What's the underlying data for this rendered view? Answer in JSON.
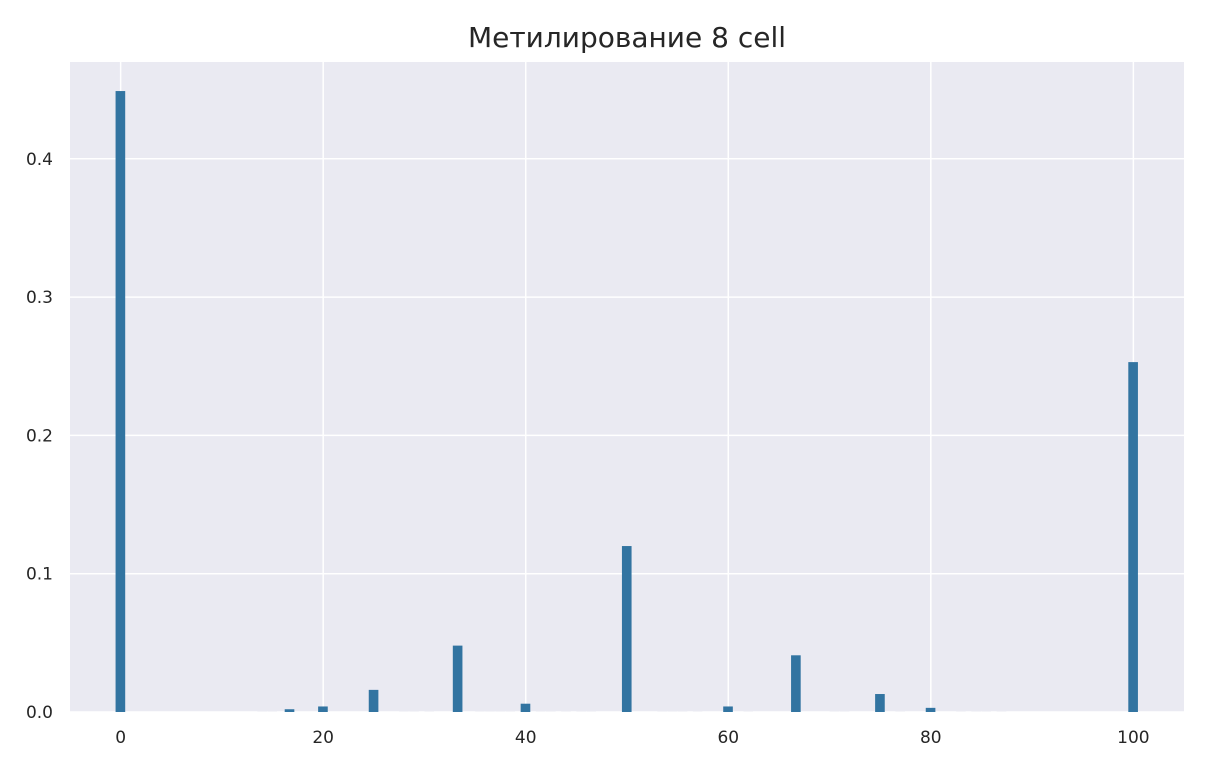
{
  "chart_data": {
    "type": "bar",
    "title": "Метилирование 8 cell",
    "xlabel": "",
    "ylabel": "",
    "xlim": [
      -5,
      105
    ],
    "ylim": [
      0,
      0.47
    ],
    "x_ticks": [
      0,
      20,
      40,
      60,
      80,
      100
    ],
    "y_ticks": [
      0.0,
      0.1,
      0.2,
      0.3,
      0.4
    ],
    "x_tick_labels": [
      "0",
      "20",
      "40",
      "60",
      "80",
      "100"
    ],
    "y_tick_labels": [
      "0.0",
      "0.1",
      "0.2",
      "0.3",
      "0.4"
    ],
    "bar_width": 1.0,
    "grid": true,
    "colors": {
      "background": "#eaeaf2",
      "grid": "#ffffff",
      "bar": "#3274a1",
      "text": "#262626"
    },
    "bars": [
      {
        "x": 0,
        "y": 0.449
      },
      {
        "x": 14,
        "y": 0.0005
      },
      {
        "x": 15,
        "y": 0.0005
      },
      {
        "x": 16.7,
        "y": 0.002
      },
      {
        "x": 20,
        "y": 0.004
      },
      {
        "x": 25,
        "y": 0.016
      },
      {
        "x": 28,
        "y": 0.0005
      },
      {
        "x": 29,
        "y": 0.0005
      },
      {
        "x": 30.5,
        "y": 0.0005
      },
      {
        "x": 33.3,
        "y": 0.048
      },
      {
        "x": 35.5,
        "y": 0.0005
      },
      {
        "x": 36.5,
        "y": 0.0005
      },
      {
        "x": 37.5,
        "y": 0.0005
      },
      {
        "x": 38.5,
        "y": 0.0005
      },
      {
        "x": 40,
        "y": 0.006
      },
      {
        "x": 41.5,
        "y": 0.0005
      },
      {
        "x": 42.5,
        "y": 0.0005
      },
      {
        "x": 44,
        "y": 0.0005
      },
      {
        "x": 45.5,
        "y": 0.0005
      },
      {
        "x": 46.5,
        "y": 0.0005
      },
      {
        "x": 50,
        "y": 0.12
      },
      {
        "x": 53.5,
        "y": 0.0005
      },
      {
        "x": 54.5,
        "y": 0.0005
      },
      {
        "x": 55.5,
        "y": 0.0005
      },
      {
        "x": 57,
        "y": 0.0005
      },
      {
        "x": 60,
        "y": 0.004
      },
      {
        "x": 62,
        "y": 0.0005
      },
      {
        "x": 66.7,
        "y": 0.041
      },
      {
        "x": 70.5,
        "y": 0.0005
      },
      {
        "x": 71.5,
        "y": 0.0005
      },
      {
        "x": 75,
        "y": 0.013
      },
      {
        "x": 77,
        "y": 0.0005
      },
      {
        "x": 80,
        "y": 0.003
      },
      {
        "x": 83,
        "y": 0.0005
      },
      {
        "x": 84.5,
        "y": 0.0005
      },
      {
        "x": 85.5,
        "y": 0.0005
      },
      {
        "x": 87,
        "y": 0.0005
      },
      {
        "x": 100,
        "y": 0.253
      }
    ]
  }
}
